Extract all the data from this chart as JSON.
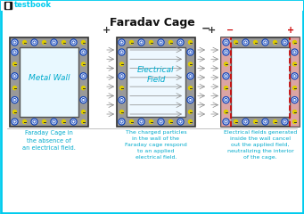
{
  "title": "Faradav Cage",
  "bg_color": "#ffffff",
  "outer_border_color": "#00ccee",
  "logo_text": "testbook",
  "logo_color": "#00ccee",
  "cage1_label": "Metal Wall",
  "cage1_caption": "Faraday Cage in\nthe absence of\nan electrical field.",
  "cage2_label": "Electrical\nField",
  "cage2_caption": "The charged particles\nin the wall of the\nFaraday cage respond\nto an applied\nelectrical field.",
  "cage3_caption": "Electrical fields generated\ninside the wall cancel\nout the applied field,\nneutralizing the interior\nof the cage.",
  "caption_color": "#00aacc",
  "title_color": "#111111",
  "cage_bg": "#e8f8ff",
  "blue_dot_color": "#1144bb",
  "blue_dot_ring": "#4477ff",
  "yellow_dot_color": "#ddcc00",
  "red_dash_color": "#cc0000",
  "red_fill_color": "#ffaaaa"
}
